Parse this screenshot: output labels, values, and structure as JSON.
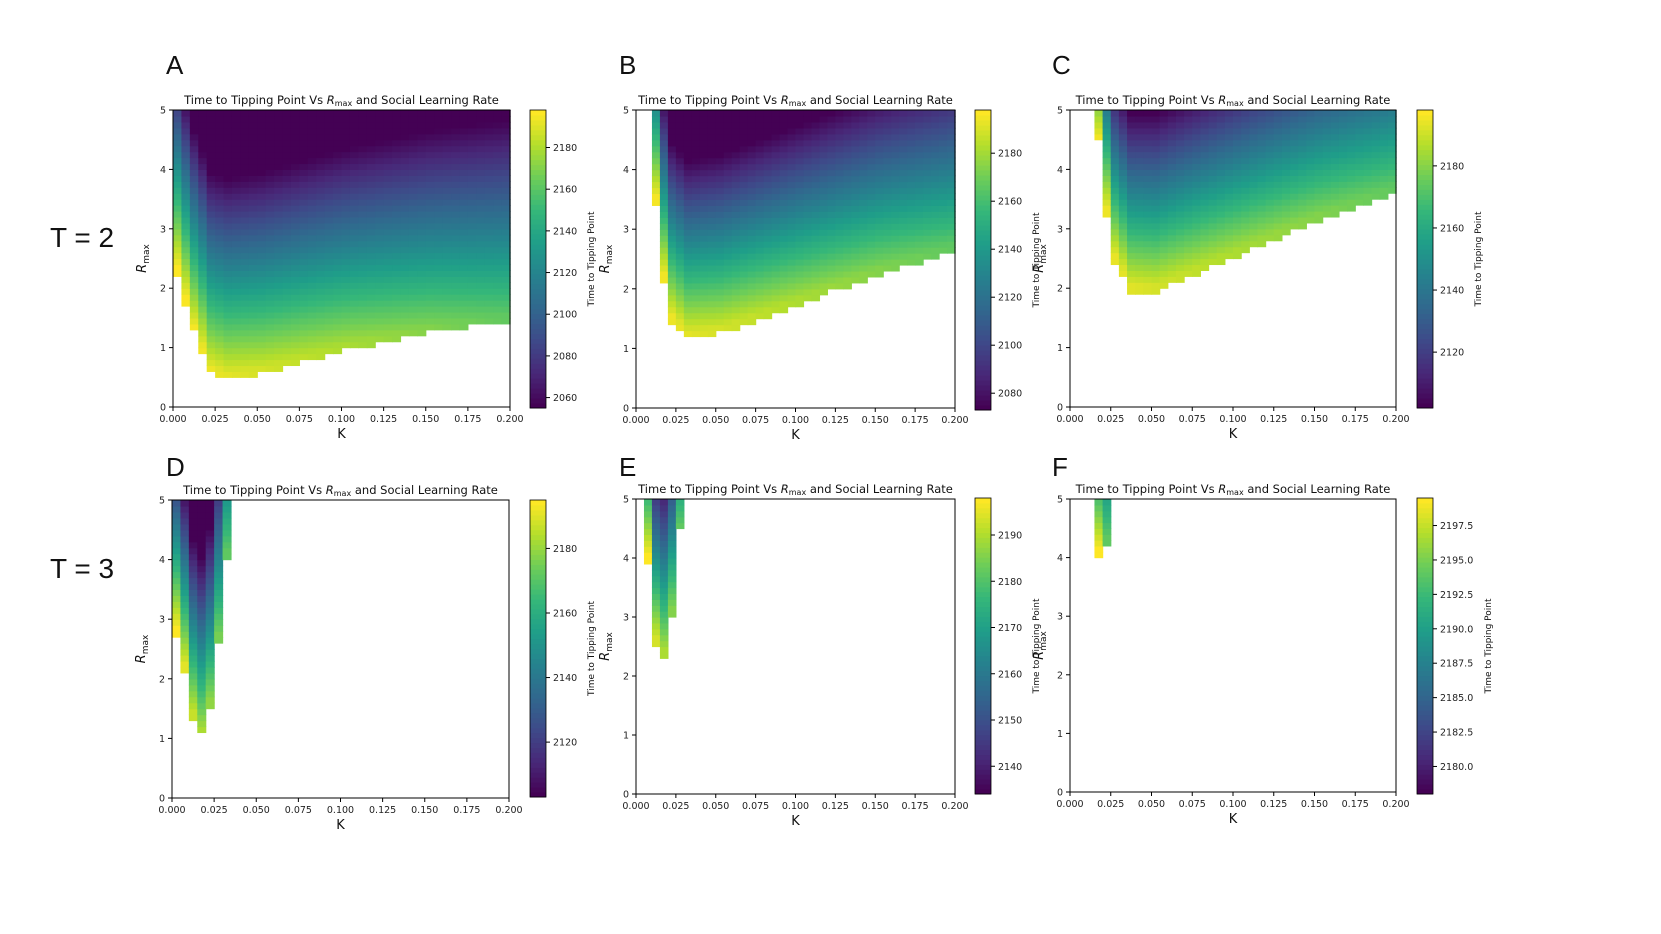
{
  "row_labels": [
    "T = 2",
    "T = 3"
  ],
  "colorbar_label": "Time to Tipping Point",
  "chart_data": [
    {
      "panel": "A",
      "type": "heatmap",
      "title_prefix": "Time to Tipping Point Vs ",
      "title_sym": "R",
      "title_sub": "max",
      "title_suffix": " and Social Learning Rate",
      "xlabel": "K",
      "ylabel_sym": "R",
      "ylabel_sub": "max",
      "xlim": [
        0,
        0.2
      ],
      "ylim": [
        0,
        5
      ],
      "xticks": [
        "0.000",
        "0.025",
        "0.050",
        "0.075",
        "0.100",
        "0.125",
        "0.150",
        "0.175",
        "0.200"
      ],
      "yticks": [
        "0",
        "1",
        "2",
        "3",
        "4",
        "5"
      ],
      "boundary": {
        "k_points": [
          0,
          0.01,
          0.02,
          0.03,
          0.05,
          0.1,
          0.15,
          0.2
        ],
        "r_points": [
          2.3,
          1.3,
          0.6,
          0.5,
          0.6,
          1.0,
          1.3,
          1.5
        ]
      },
      "cbar_ticks": [
        2060,
        2080,
        2100,
        2120,
        2140,
        2160,
        2180
      ],
      "cbar_range": [
        2055,
        2198
      ]
    },
    {
      "panel": "B",
      "type": "heatmap",
      "title_prefix": "Time to Tipping Point Vs ",
      "title_sym": "R",
      "title_sub": "max",
      "title_suffix": " and Social Learning Rate",
      "xlabel": "K",
      "ylabel_sym": "R",
      "ylabel_sub": "max",
      "xlim": [
        0,
        0.2
      ],
      "ylim": [
        0,
        5
      ],
      "xticks": [
        "0.000",
        "0.025",
        "0.050",
        "0.075",
        "0.100",
        "0.125",
        "0.150",
        "0.175",
        "0.200"
      ],
      "yticks": [
        "0",
        "1",
        "2",
        "3",
        "4",
        "5"
      ],
      "boundary": {
        "k_points": [
          0.005,
          0.01,
          0.015,
          0.02,
          0.03,
          0.05,
          0.1,
          0.15,
          0.2
        ],
        "r_points": [
          5.1,
          3.5,
          2.2,
          1.5,
          1.2,
          1.3,
          1.8,
          2.3,
          2.7
        ]
      },
      "cbar_ticks": [
        2080,
        2100,
        2120,
        2140,
        2160,
        2180
      ],
      "cbar_range": [
        2073,
        2198
      ]
    },
    {
      "panel": "C",
      "type": "heatmap",
      "title_prefix": "Time to Tipping Point Vs ",
      "title_sym": "R",
      "title_sub": "max",
      "title_suffix": " and Social Learning Rate",
      "xlabel": "K",
      "ylabel_sym": "R",
      "ylabel_sub": "max",
      "xlim": [
        0,
        0.2
      ],
      "ylim": [
        0,
        5
      ],
      "xticks": [
        "0.000",
        "0.025",
        "0.050",
        "0.075",
        "0.100",
        "0.125",
        "0.150",
        "0.175",
        "0.200"
      ],
      "yticks": [
        "0",
        "1",
        "2",
        "3",
        "4",
        "5"
      ],
      "boundary": {
        "k_points": [
          0.01,
          0.015,
          0.02,
          0.025,
          0.035,
          0.05,
          0.1,
          0.15,
          0.2
        ],
        "r_points": [
          5.1,
          4.5,
          3.3,
          2.5,
          2.0,
          2.0,
          2.6,
          3.2,
          3.7
        ]
      },
      "cbar_ticks": [
        2120,
        2140,
        2160,
        2180
      ],
      "cbar_range": [
        2102,
        2198
      ]
    },
    {
      "panel": "D",
      "type": "heatmap",
      "title_prefix": "Time to Tipping Point Vs ",
      "title_sym": "R",
      "title_sub": "max",
      "title_suffix": " and Social Learning Rate",
      "xlabel": "K",
      "ylabel_sym": "R",
      "ylabel_sub": "max",
      "xlim": [
        0,
        0.2
      ],
      "ylim": [
        0,
        5
      ],
      "xticks": [
        "0.000",
        "0.025",
        "0.050",
        "0.075",
        "0.100",
        "0.125",
        "0.150",
        "0.175",
        "0.200"
      ],
      "yticks": [
        "0",
        "1",
        "2",
        "3",
        "4",
        "5"
      ],
      "boundary": {
        "k_points": [
          0,
          0.005,
          0.01,
          0.015,
          0.02,
          0.025,
          0.03
        ],
        "r_points": [
          2.8,
          2.2,
          1.4,
          1.1,
          1.6,
          2.7,
          4.1
        ]
      },
      "k_max": 0.03,
      "cbar_ticks": [
        2120,
        2140,
        2160,
        2180
      ],
      "cbar_range": [
        2103,
        2195
      ]
    },
    {
      "panel": "E",
      "type": "heatmap",
      "title_prefix": "Time to Tipping Point Vs ",
      "title_sym": "R",
      "title_sub": "max",
      "title_suffix": " and Social Learning Rate",
      "xlabel": "K",
      "ylabel_sym": "R",
      "ylabel_sub": "max",
      "xlim": [
        0,
        0.2
      ],
      "ylim": [
        0,
        5
      ],
      "xticks": [
        "0.000",
        "0.025",
        "0.050",
        "0.075",
        "0.100",
        "0.125",
        "0.150",
        "0.175",
        "0.200"
      ],
      "yticks": [
        "0",
        "1",
        "2",
        "3",
        "4",
        "5"
      ],
      "boundary": {
        "k_points": [
          0.005,
          0.01,
          0.015,
          0.02,
          0.025
        ],
        "r_points": [
          4.0,
          2.6,
          2.4,
          3.1,
          4.5
        ]
      },
      "k_min": 0.005,
      "k_max": 0.025,
      "cbar_ticks": [
        2140,
        2150,
        2160,
        2170,
        2180,
        2190
      ],
      "cbar_range": [
        2134,
        2198
      ]
    },
    {
      "panel": "F",
      "type": "heatmap",
      "title_prefix": "Time to Tipping Point Vs ",
      "title_sym": "R",
      "title_sub": "max",
      "title_suffix": " and Social Learning Rate",
      "xlabel": "K",
      "ylabel_sym": "R",
      "ylabel_sub": "max",
      "xlim": [
        0,
        0.2
      ],
      "ylim": [
        0,
        5
      ],
      "xticks": [
        "0.000",
        "0.025",
        "0.050",
        "0.075",
        "0.100",
        "0.125",
        "0.150",
        "0.175",
        "0.200"
      ],
      "yticks": [
        "0",
        "1",
        "2",
        "3",
        "4",
        "5"
      ],
      "boundary": {
        "k_points": [
          0.015,
          0.02
        ],
        "r_points": [
          4.1,
          4.3
        ]
      },
      "k_min": 0.015,
      "k_max": 0.02,
      "cbar_ticks": [
        "2180.0",
        "2182.5",
        "2185.0",
        "2187.5",
        "2190.0",
        "2192.5",
        "2195.0",
        "2197.5"
      ],
      "cbar_range": [
        2178,
        2199.5
      ]
    }
  ]
}
